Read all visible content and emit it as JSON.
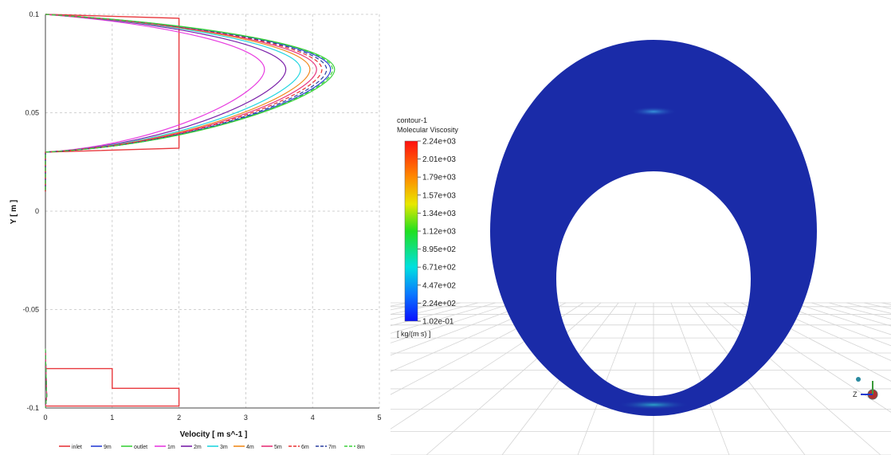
{
  "chart_data": {
    "type": "line",
    "xlabel": "Velocity [ m s^-1 ]",
    "ylabel": "Y [ m ]",
    "xlim": [
      0,
      5
    ],
    "ylim": [
      -0.1,
      0.1
    ],
    "x_ticks": [
      "0",
      "1",
      "2",
      "3",
      "4",
      "5"
    ],
    "y_ticks": [
      "0.1",
      "0.05",
      "0",
      "-0.05",
      "-0.1"
    ],
    "grid": true,
    "legend_position": "bottom",
    "colors": {
      "inlet": "#e8383d",
      "9m": "#2a3fd6",
      "outlet": "#3ad13a",
      "1m": "#e83ce0",
      "2m": "#7a1fa8",
      "3m": "#22d6e0",
      "4m": "#f08a1e",
      "5m": "#e8337a",
      "6m": "#e83030",
      "7m": "#2a3fa0",
      "8m": "#3ad13a"
    },
    "series": [
      {
        "name": "inlet",
        "style": "solid",
        "profile": "inlet"
      },
      {
        "name": "9m",
        "style": "solid",
        "peak": 4.27
      },
      {
        "name": "outlet",
        "style": "solid",
        "peak": 4.33
      },
      {
        "name": "1m",
        "style": "solid",
        "peak": 3.28
      },
      {
        "name": "2m",
        "style": "solid",
        "peak": 3.6
      },
      {
        "name": "3m",
        "style": "solid",
        "peak": 3.82
      },
      {
        "name": "4m",
        "style": "solid",
        "peak": 3.96
      },
      {
        "name": "5m",
        "style": "solid",
        "peak": 4.06
      },
      {
        "name": "6m",
        "style": "dashed",
        "peak": 4.14
      },
      {
        "name": "7m",
        "style": "dashed",
        "peak": 4.21
      },
      {
        "name": "8m",
        "style": "dashed",
        "peak": 4.3
      }
    ],
    "upper_channel": {
      "y_bottom": 0.03,
      "y_top": 0.1,
      "y_center": 0.072
    },
    "inlet_profile": {
      "upper": {
        "x": 2,
        "y_from": 0.032,
        "y_to": 0.098
      },
      "lower": [
        {
          "x": 1,
          "y_from": -0.08,
          "y_to": -0.09
        },
        {
          "x": 2,
          "y_from": -0.09,
          "y_to": -0.099
        }
      ]
    }
  },
  "contour": {
    "name": "contour-1",
    "variable": "Molecular Viscosity",
    "unit": "[ kg/(m s) ]",
    "levels": [
      "2.24e+03",
      "2.01e+03",
      "1.79e+03",
      "1.57e+03",
      "1.34e+03",
      "1.12e+03",
      "8.95e+02",
      "6.71e+02",
      "4.47e+02",
      "2.24e+02",
      "1.02e-01"
    ],
    "ring_color": "#1a2ba8",
    "axis_triad_label": "Z"
  }
}
